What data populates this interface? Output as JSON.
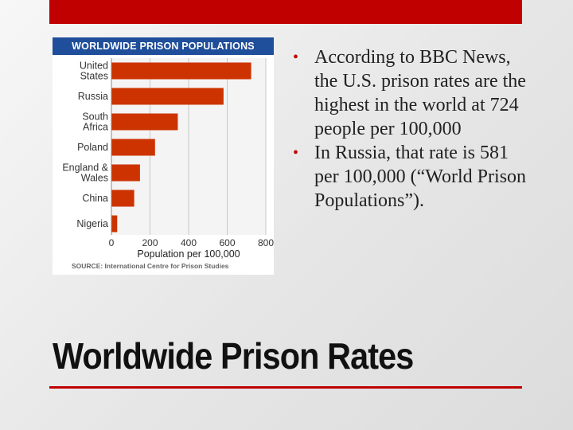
{
  "slide": {
    "title": "Worldwide Prison Rates",
    "bullets": [
      "According to BBC News, the U.S. prison rates are the highest in the world at 724 people per 100,000",
      "In Russia, that rate is 581 per 100,000 (“World Prison Populations”)."
    ],
    "accent_color": "#c00000"
  },
  "chart_data": {
    "type": "bar",
    "orientation": "horizontal",
    "title": "WORLDWIDE PRISON POPULATIONS",
    "categories": [
      [
        "United",
        "States"
      ],
      [
        "Russia"
      ],
      [
        "South",
        "Africa"
      ],
      [
        "Poland"
      ],
      [
        "England &",
        "Wales"
      ],
      [
        "China"
      ],
      [
        "Nigeria"
      ]
    ],
    "values": [
      724,
      581,
      344,
      226,
      148,
      118,
      30
    ],
    "xlabel": "Population per 100,000",
    "xticks": [
      "0",
      "200",
      "400",
      "600",
      "800"
    ],
    "xlim": [
      0,
      800
    ],
    "source": "SOURCE: International Centre for Prison Studies",
    "bar_color": "#cc3300",
    "header_color": "#1f4e9a",
    "grid": true
  }
}
